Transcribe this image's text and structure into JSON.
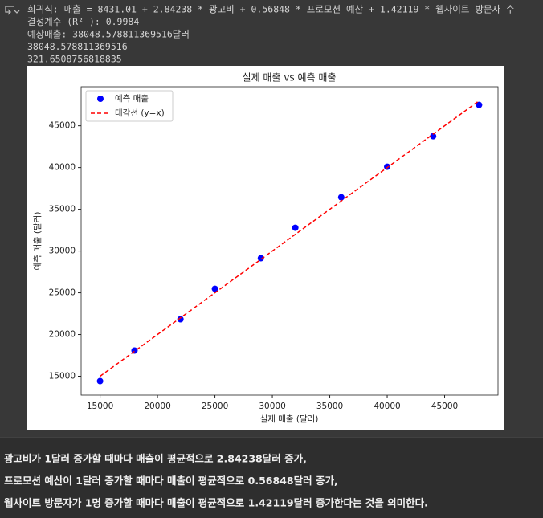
{
  "output_lines": [
    "회귀식: 매출 = 8431.01 + 2.84238 * 광고비 + 0.56848 * 프로모션 예산 + 1.42119 * 웹사이트 방문자 수",
    "결정계수 (R² ): 0.9984",
    "예상매출: 38048.578811369516달러",
    "38048.578811369516",
    "321.6508756818835"
  ],
  "chart_data": {
    "type": "scatter",
    "title": "실제 매출 vs 예측 매출",
    "x_label": "실제 매출 (달러)",
    "y_label": "예측 매출 (달러)",
    "x": [
      15000,
      18000,
      22000,
      25000,
      29000,
      32000,
      36000,
      40000,
      44000,
      48000
    ],
    "series": [
      {
        "name": "예측 매출",
        "color": "#0000ff",
        "type": "scatter",
        "values": [
          14420,
          18080,
          21830,
          25480,
          29140,
          32790,
          36440,
          40100,
          43750,
          47500
        ]
      },
      {
        "name": "대각선 (y=x)",
        "color": "#ff0000",
        "type": "line",
        "style": "dashed",
        "x": [
          15000,
          48000
        ],
        "values": [
          15000,
          48000
        ]
      }
    ],
    "xlim": [
      13350,
      49650
    ],
    "ylim": [
      12740,
      49680
    ],
    "xticks": [
      15000,
      20000,
      25000,
      30000,
      35000,
      40000,
      45000
    ],
    "yticks": [
      15000,
      20000,
      25000,
      30000,
      35000,
      40000,
      45000
    ],
    "legend": "upper left",
    "grid": false
  },
  "explanation": [
    "광고비가 1달러 증가할 때마다 매출이 평균적으로 2.84238달러 증가,",
    "프로모션 예산이 1달러 증가할 때마다 매출이 평균적으로 0.56848달러 증가,",
    "웹사이트 방문자가 1명 증가할 때마다 매출이 평균적으로 1.42119달러 증가한다는 것을 의미한다."
  ]
}
